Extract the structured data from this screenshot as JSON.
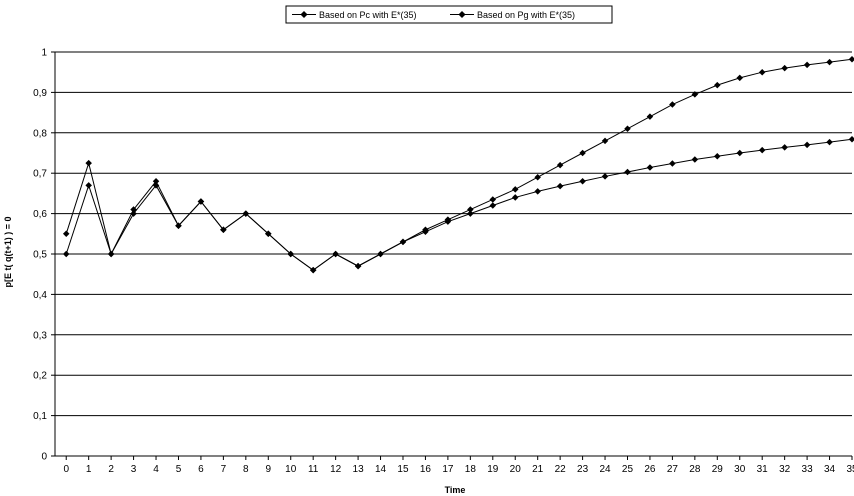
{
  "chart_data": {
    "type": "line",
    "title": "",
    "xlabel": "Time",
    "ylabel": "p[E t( q(t+1) ) = 0",
    "x": [
      0,
      1,
      2,
      3,
      4,
      5,
      6,
      7,
      8,
      9,
      10,
      11,
      12,
      13,
      14,
      15,
      16,
      17,
      18,
      19,
      20,
      21,
      22,
      23,
      24,
      25,
      26,
      27,
      28,
      29,
      30,
      31,
      32,
      33,
      34,
      35
    ],
    "x_tick_labels": [
      "0",
      "1",
      "2",
      "3",
      "4",
      "5",
      "6",
      "7",
      "8",
      "9",
      "10",
      "11",
      "12",
      "13",
      "14",
      "15",
      "16",
      "17",
      "18",
      "19",
      "20",
      "21",
      "22",
      "23",
      "24",
      "25",
      "26",
      "27",
      "28",
      "29",
      "30",
      "31",
      "32",
      "33",
      "34",
      "35"
    ],
    "ylim": [
      0,
      1
    ],
    "y_ticks": [
      0,
      0.1,
      0.2,
      0.3,
      0.4,
      0.5,
      0.6,
      0.7,
      0.8,
      0.9,
      1
    ],
    "y_tick_labels": [
      "0",
      "0,1",
      "0,2",
      "0,3",
      "0,4",
      "0,5",
      "0,6",
      "0,7",
      "0,8",
      "0,9",
      "1"
    ],
    "grid": "horizontal",
    "legend_position": "top-center",
    "series": [
      {
        "name": "Based on Pc with E*(35)",
        "values": [
          0.5,
          0.67,
          0.5,
          0.6,
          0.67,
          0.57,
          0.63,
          0.56,
          0.6,
          0.55,
          0.5,
          0.46,
          0.5,
          0.47,
          0.5,
          0.53,
          0.555,
          0.58,
          0.6,
          0.62,
          0.64,
          0.655,
          0.668,
          0.68,
          0.692,
          0.703,
          0.714,
          0.724,
          0.734,
          0.742,
          0.75,
          0.757,
          0.764,
          0.77,
          0.777,
          0.784
        ]
      },
      {
        "name": "Based on Pg with E*(35)",
        "values": [
          0.55,
          0.725,
          0.5,
          0.61,
          0.68,
          0.57,
          0.63,
          0.56,
          0.6,
          0.55,
          0.5,
          0.46,
          0.5,
          0.47,
          0.5,
          0.53,
          0.56,
          0.585,
          0.61,
          0.635,
          0.66,
          0.69,
          0.72,
          0.75,
          0.78,
          0.81,
          0.84,
          0.87,
          0.895,
          0.918,
          0.936,
          0.95,
          0.96,
          0.968,
          0.975,
          0.982
        ]
      }
    ],
    "colors": {
      "line": "#000000",
      "grid": "#000000",
      "axis": "#000000"
    }
  }
}
